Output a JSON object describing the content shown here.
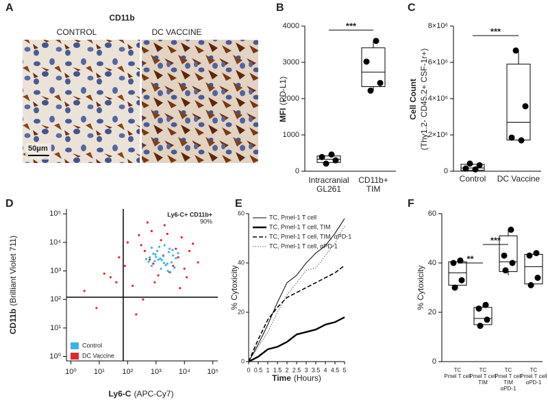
{
  "chart_data": [
    {
      "type": "image",
      "panel_label": "A",
      "title": "CD11b",
      "images": [
        {
          "label": "CONTROL"
        },
        {
          "label": "DC VACCINE"
        }
      ],
      "scale_bar": "50μm"
    },
    {
      "type": "box",
      "panel_label": "B",
      "ylabel": [
        "MFI",
        "(PD-L1)"
      ],
      "categories": [
        [
          "Intracranial",
          "GL261"
        ],
        [
          "CD11b+",
          "TIM"
        ]
      ],
      "boxes": [
        {
          "min": 180,
          "q1": 240,
          "median": 330,
          "q3": 420,
          "max": 470,
          "points": [
            460,
            390,
            300,
            210
          ]
        },
        {
          "min": 2210,
          "q1": 2330,
          "median": 2730,
          "q3": 3400,
          "max": 3600,
          "points": [
            3590,
            3020,
            2430,
            2220
          ]
        }
      ],
      "ylim": [
        0,
        4000
      ],
      "yticks": [
        0,
        1000,
        2000,
        3000,
        4000
      ],
      "significance": [
        {
          "from": 0,
          "to": 1,
          "label": "***"
        }
      ],
      "color": "#000000"
    },
    {
      "type": "box",
      "panel_label": "C",
      "ylabel": [
        "Cell Count",
        "(Thy1.2- CD45.2+ CSF-1r+)"
      ],
      "categories": [
        [
          "Control"
        ],
        [
          "DC Vaccine"
        ]
      ],
      "boxes": [
        {
          "min": 0,
          "q1": 50000,
          "median": 180000,
          "q3": 380000,
          "max": 420000,
          "points": [
            420000,
            330000,
            150000,
            100000
          ]
        },
        {
          "min": 1700000,
          "q1": 1720000,
          "median": 2700000,
          "q3": 5900000,
          "max": 6650000,
          "points": [
            6650000,
            3580000,
            1850000,
            1700000
          ]
        }
      ],
      "ylim": [
        0,
        8000000
      ],
      "yticks": [
        0,
        {
          "value": 2000000,
          "label": "2×10⁶"
        },
        {
          "value": 4000000,
          "label": "4×10⁶"
        },
        {
          "value": 6000000,
          "label": "6×10⁶"
        },
        {
          "value": 8000000,
          "label": "8×10⁶"
        }
      ],
      "significance": [
        {
          "from": 0,
          "to": 1,
          "label": "***"
        }
      ],
      "color": "#000000"
    },
    {
      "type": "scatter",
      "panel_label": "D",
      "xlabel": [
        "Ly6-C",
        "(APC-Cy7)"
      ],
      "ylabel": [
        "CD11b",
        "(Brilliant Violet 711)"
      ],
      "log_x": true,
      "log_y": true,
      "xlim": [
        0.7,
        150000
      ],
      "ylim": [
        0.7,
        150000
      ],
      "xticks": [
        {
          "value": 1,
          "label": "10⁰"
        },
        {
          "value": 10,
          "label": "10¹"
        },
        {
          "value": 100,
          "label": "10²"
        },
        {
          "value": 1000,
          "label": "10³"
        },
        {
          "value": 10000,
          "label": "10⁴"
        },
        {
          "value": 100000,
          "label": "10⁵"
        }
      ],
      "yticks": [
        {
          "value": 1,
          "label": "10⁰"
        },
        {
          "value": 10,
          "label": "10¹"
        },
        {
          "value": 100,
          "label": "10²"
        },
        {
          "value": 1000,
          "label": "10³"
        },
        {
          "value": 10000,
          "label": "10⁴"
        },
        {
          "value": 100000,
          "label": "10⁵"
        }
      ],
      "gate": {
        "x": 70,
        "y": 120,
        "label": "Ly6-C+ CD11b+",
        "percent": "90%"
      },
      "series": [
        {
          "name": "Control",
          "color": "#35b6e6",
          "x": [
            1200,
            800,
            2500,
            3000,
            600,
            1500,
            4000,
            900,
            2000,
            5000,
            700,
            1100,
            3500,
            1800,
            2600,
            450,
            6000,
            1300,
            2200,
            950,
            3200,
            1600,
            700,
            2800,
            4500,
            1000,
            1900,
            3800,
            550,
            1400
          ],
          "values": [
            2500,
            4000,
            1800,
            6000,
            3000,
            1200,
            3500,
            2200,
            8000,
            2800,
            1500,
            5000,
            2000,
            3300,
            1000,
            2600,
            4200,
            7000,
            1600,
            3800,
            900,
            2400,
            6500,
            4600,
            1300,
            3100,
            1900,
            5500,
            2100,
            2700
          ]
        },
        {
          "name": "DC Vaccine",
          "color": "#e3242b",
          "x": [
            3,
            15,
            80,
            200,
            400,
            1500,
            6000,
            12000,
            30000,
            2500,
            900,
            300,
            50,
            8,
            700,
            4000,
            20000,
            150,
            1200,
            8000,
            600,
            2000,
            10000,
            350,
            5000,
            100,
            25,
            1800,
            3000,
            15000,
            40,
            250,
            800,
            7000,
            500
          ],
          "values": [
            200,
            800,
            1500,
            30,
            5000,
            12000,
            3000,
            600,
            2000,
            20000,
            400,
            8000,
            3000,
            50,
            25000,
            1500,
            9000,
            300,
            700,
            15000,
            2500,
            40000,
            1200,
            100,
            6000,
            10000,
            600,
            3500,
            900,
            5000,
            400,
            18000,
            1800,
            250,
            50000
          ]
        }
      ]
    },
    {
      "type": "line",
      "panel_label": "E",
      "xlabel": [
        "Time",
        "(Hours)"
      ],
      "ylabel": "% Cytoxicity",
      "x": [
        0,
        0.5,
        1,
        1.5,
        2,
        2.5,
        3,
        3.5,
        4,
        4.5,
        5
      ],
      "xlim": [
        0,
        5
      ],
      "xticks": [
        0,
        0.5,
        1,
        1.5,
        2,
        2.5,
        3,
        3.5,
        4,
        4.5,
        5
      ],
      "ylim": [
        0,
        60
      ],
      "yticks": [
        0,
        20,
        40,
        60
      ],
      "series": [
        {
          "name": "TC, Pmel-1 T cell",
          "color": "#000000",
          "line_style": "solid",
          "line_width": 1,
          "values": [
            0,
            7,
            15,
            24,
            32,
            35,
            40,
            44,
            47,
            52,
            58
          ]
        },
        {
          "name": "TC, Pmel-1 T cell, TIM",
          "color": "#000000",
          "line_style": "solid",
          "line_width": 2.4,
          "values": [
            0,
            2,
            5,
            6,
            8,
            11,
            12,
            13,
            15,
            16,
            18
          ]
        },
        {
          "name": "TC, Pmel-1 T cell, TIM, αPD-1",
          "color": "#000000",
          "line_style": "dashed",
          "line_width": 1.6,
          "values": [
            0,
            9,
            17,
            22,
            26,
            28,
            30,
            32,
            34,
            36,
            39
          ]
        },
        {
          "name": "TC, Pmel-1 T cell, αPD-1",
          "color": "#555555",
          "line_style": "dotted",
          "line_width": 1,
          "values": [
            0,
            6,
            12,
            20,
            27,
            32,
            37,
            38,
            43,
            48,
            55
          ]
        }
      ]
    },
    {
      "type": "box",
      "panel_label": "F",
      "ylabel": "% Cytoxicity",
      "categories": [
        [
          "TC",
          "Pmel T cell"
        ],
        [
          "TC",
          "Pmel T cell",
          "TIM"
        ],
        [
          "TC",
          "Pmel T cell",
          "TIM",
          "αPD-1"
        ],
        [
          "TC",
          "Pmel T cell",
          "αPD-1"
        ]
      ],
      "boxes": [
        {
          "min": 29.5,
          "q1": 31,
          "median": 36,
          "q3": 40.5,
          "max": 41.5,
          "points": [
            41,
            40,
            33,
            30
          ]
        },
        {
          "min": 14,
          "q1": 15,
          "median": 17.5,
          "q3": 22,
          "max": 23,
          "points": [
            23,
            21.5,
            17,
            14.5
          ]
        },
        {
          "min": 35,
          "q1": 36.5,
          "median": 40.5,
          "q3": 51,
          "max": 54,
          "points": [
            53.5,
            43,
            40,
            37
          ]
        },
        {
          "min": 30.5,
          "q1": 31.5,
          "median": 38.5,
          "q3": 43.5,
          "max": 44,
          "points": [
            44,
            43,
            34,
            31
          ]
        }
      ],
      "ylim": [
        0,
        60
      ],
      "yticks": [
        0,
        20,
        40,
        60
      ],
      "significance": [
        {
          "from": 0,
          "to": 1,
          "label": "**"
        },
        {
          "from": 1,
          "to": 2,
          "label": "***"
        }
      ],
      "color": "#000000"
    }
  ]
}
